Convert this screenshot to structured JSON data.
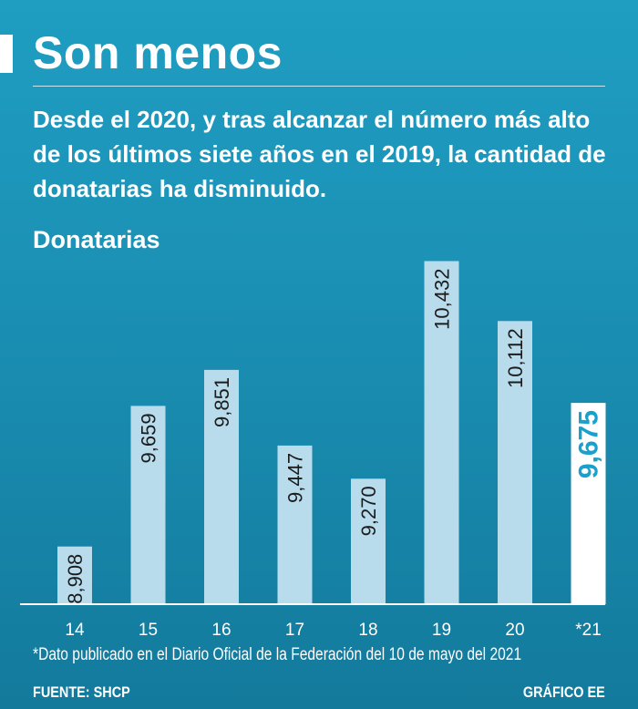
{
  "header": {
    "title": "Son menos",
    "subtitle": "Desde el 2020, y tras alcanzar el número más alto de los últimos siete años en el 2019, la cantidad de donatarias ha disminuido."
  },
  "chart_data": {
    "type": "bar",
    "title": "Donatarias",
    "categories": [
      "14",
      "15",
      "16",
      "17",
      "18",
      "19",
      "20",
      "*21"
    ],
    "values": [
      8908,
      9659,
      9851,
      9447,
      9270,
      10432,
      10112,
      9675
    ],
    "value_labels": [
      "8,908",
      "9,659",
      "9,851",
      "9,447",
      "9,270",
      "10,432",
      "10,112",
      "9,675"
    ],
    "highlight_index": 7,
    "ylim": [
      8600,
      10600
    ],
    "xlabel": "",
    "ylabel": "",
    "grid": false
  },
  "footer": {
    "footnote": "*Dato publicado en el Diario Oficial de la Federación del 10 de mayo del 2021",
    "source": "FUENTE: SHCP",
    "credit": "GRÁFICO EE"
  },
  "colors": {
    "bar": "#b9dced",
    "bar_highlight": "#ffffff",
    "bar_text": "#1c1c1c",
    "highlight_text": "#1aa0cc",
    "baseline": "#ffffff"
  }
}
